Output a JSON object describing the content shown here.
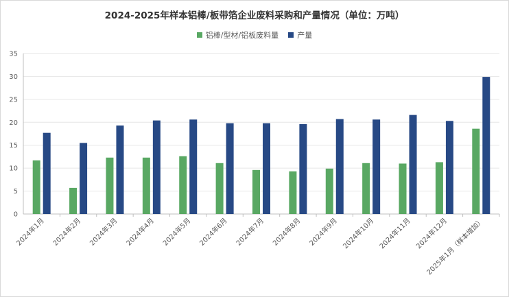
{
  "chart_data": {
    "type": "bar",
    "title": "2024-2025年样本铝棒/板带箔企业废料采购和产量情况（单位：万吨）",
    "categories": [
      "2024年1月",
      "2024年2月",
      "2024年3月",
      "2024年4月",
      "2024年5月",
      "2024年6月",
      "2024年7月",
      "2024年8月",
      "2024年9月",
      "2024年10月",
      "2024年11月",
      "2024年12月",
      "2025年1月（样本增加）"
    ],
    "series": [
      {
        "name": "铝棒/型材/铝板废料量",
        "color": "#59a863",
        "values": [
          11.7,
          5.7,
          12.3,
          12.3,
          12.6,
          11.1,
          9.6,
          9.3,
          9.9,
          11.1,
          11.0,
          11.3,
          18.6
        ]
      },
      {
        "name": "产量",
        "color": "#274985",
        "values": [
          17.7,
          15.5,
          19.3,
          20.4,
          20.6,
          19.8,
          19.8,
          19.6,
          20.7,
          20.6,
          21.6,
          20.3,
          29.9
        ]
      }
    ],
    "ylim": [
      0,
      35
    ],
    "yticks": [
      0,
      5,
      10,
      15,
      20,
      25,
      30,
      35
    ],
    "grid": true,
    "legend_position": "top"
  }
}
